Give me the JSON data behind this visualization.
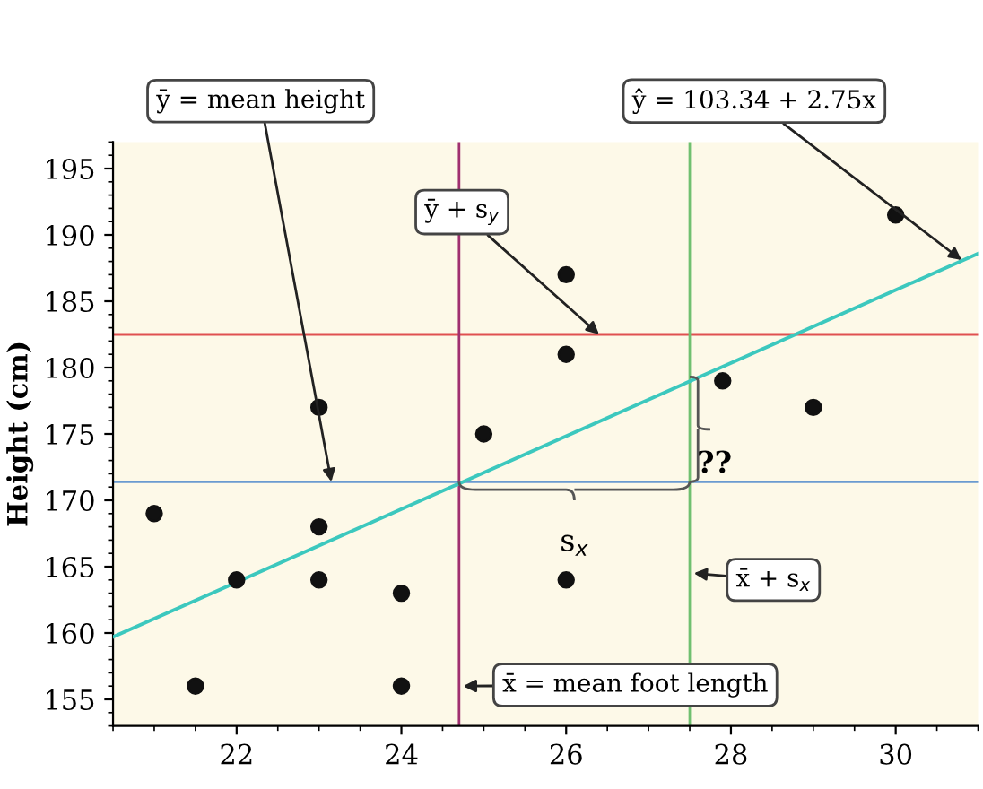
{
  "chart_data": {
    "type": "scatter",
    "ylabel": "Height (cm)",
    "x": [
      21,
      21.5,
      22,
      23,
      23,
      23,
      24,
      24,
      25,
      26,
      26,
      26,
      27.9,
      29,
      30
    ],
    "series": [
      {
        "marker": "circle",
        "color": "#111111",
        "values": [
          169,
          156,
          164,
          177,
          168,
          164,
          163,
          156,
          175,
          187,
          181,
          164,
          179,
          177,
          191.5
        ]
      },
      {
        "type": "line",
        "color": "#3cc8be",
        "x": [
          20.5,
          31
        ],
        "values": [
          159.7,
          188.6
        ]
      }
    ],
    "xlim": [
      20.5,
      31
    ],
    "ylim": [
      153,
      197
    ],
    "xticks": [
      22,
      24,
      26,
      28,
      30
    ],
    "yticks": [
      155,
      160,
      165,
      170,
      175,
      180,
      185,
      190,
      195
    ],
    "ref_lines": [
      {
        "axis": "y",
        "value": 171.4,
        "color": "#6a9ad0"
      },
      {
        "axis": "y",
        "value": 182.5,
        "color": "#e05050"
      },
      {
        "axis": "x",
        "value": 24.7,
        "color": "#a03070"
      },
      {
        "axis": "x",
        "value": 27.5,
        "color": "#70c070"
      }
    ],
    "annotations": [
      {
        "text": "ȳ = mean height",
        "x": 23.15,
        "y": 171.4
      },
      {
        "text": "ŷ = 103.34 + 2.75x",
        "x": 30.8,
        "y": 188.1
      },
      {
        "text": "ȳ + s$_{y}$",
        "x": 26.4,
        "y": 182.5
      },
      {
        "text": "x̄ + s$_{x}$",
        "x": 27.55,
        "y": 164.5
      },
      {
        "text": "x̄ = mean foot length",
        "x": 24.75,
        "y": 156
      },
      {
        "text": "s$_{x}$",
        "x": 26.1,
        "y": 171.4
      },
      {
        "text": "??",
        "x": 27.5,
        "y": 175.5
      }
    ],
    "grid": false,
    "legend": false
  }
}
